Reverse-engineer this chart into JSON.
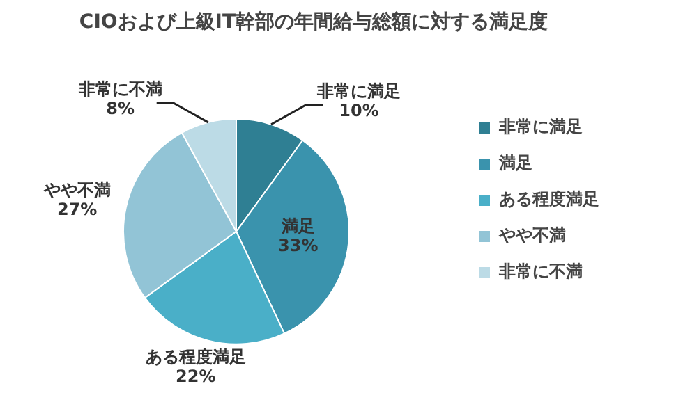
{
  "chart_data": {
    "type": "pie",
    "title": "CIOおよび上級IT幹部の年間給与総額に対する満足度",
    "categories": [
      "非常に満足",
      "満足",
      "ある程度満足",
      "やや不満",
      "非常に不満"
    ],
    "values": [
      10,
      33,
      22,
      27,
      8
    ],
    "value_labels": [
      "10%",
      "33%",
      "22%",
      "27%",
      "8%"
    ],
    "colors": [
      "#2f7f93",
      "#3a93ad",
      "#4aafc8",
      "#92c4d6",
      "#bcdbe6"
    ],
    "legend": "right"
  }
}
